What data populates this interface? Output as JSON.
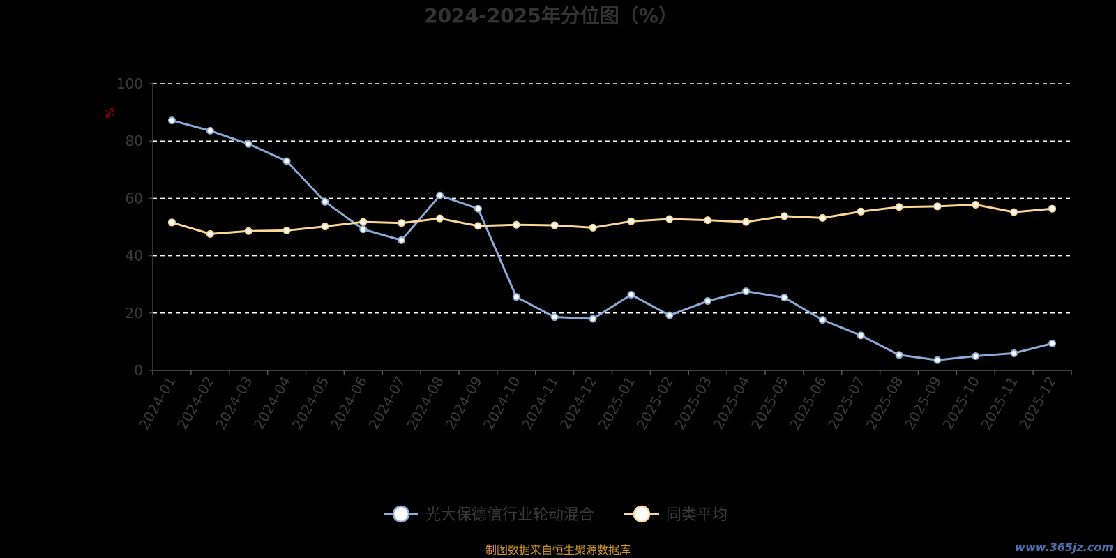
{
  "chart_data": {
    "type": "line",
    "title": "2024-2025年分位图（%）",
    "ylabel": "%",
    "ylim": [
      0,
      100
    ],
    "yticks": [
      0,
      20,
      40,
      60,
      80,
      100
    ],
    "grid": true,
    "legend_position": "bottom",
    "categories": [
      "2024-01",
      "2024-02",
      "2024-03",
      "2024-04",
      "2024-05",
      "2024-06",
      "2024-07",
      "2024-08",
      "2024-09",
      "2024-10",
      "2024-11",
      "2024-12",
      "2025-01",
      "2025-02",
      "2025-03",
      "2025-04",
      "2025-05",
      "2025-06",
      "2025-07",
      "2025-08",
      "2025-09",
      "2025-10",
      "2025-11",
      "2025-12"
    ],
    "series": [
      {
        "name": "光大保德信行业轮动混合",
        "color": "#8aaad8",
        "values": [
          87.2,
          83.6,
          79.0,
          73.0,
          58.8,
          49.2,
          45.4,
          61.0,
          56.4,
          25.6,
          18.6,
          18.0,
          26.4,
          19.2,
          24.2,
          27.6,
          25.4,
          17.6,
          12.2,
          5.4,
          3.6,
          5.0,
          6.0,
          9.4
        ]
      },
      {
        "name": "同类平均",
        "color": "#fcd695",
        "values": [
          51.6,
          47.6,
          48.6,
          48.8,
          50.2,
          51.8,
          51.4,
          53.0,
          50.4,
          50.8,
          50.6,
          49.8,
          52.0,
          52.8,
          52.4,
          51.8,
          53.8,
          53.2,
          55.4,
          57.0,
          57.2,
          57.8,
          55.2,
          56.4
        ]
      }
    ]
  },
  "footer": {
    "source": "制图数据来自恒生聚源数据库",
    "watermark": "www.365jz.com"
  }
}
